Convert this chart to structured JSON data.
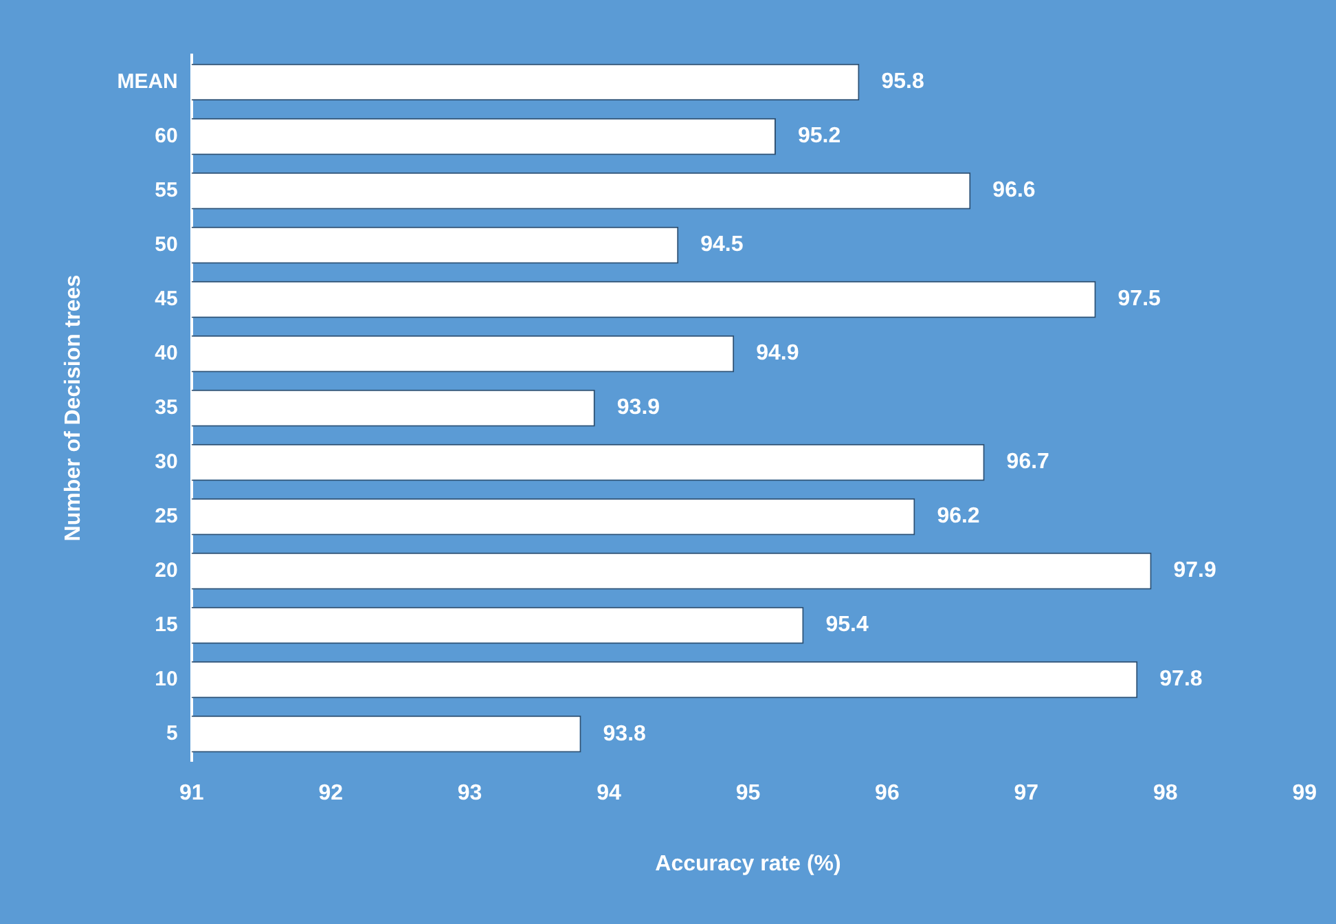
{
  "chart_data": {
    "type": "bar",
    "orientation": "horizontal",
    "xlabel": "Accuracy rate (%)",
    "ylabel": "Number of Decision trees",
    "categories": [
      "MEAN",
      "60",
      "55",
      "50",
      "45",
      "40",
      "35",
      "30",
      "25",
      "20",
      "15",
      "10",
      "5"
    ],
    "values": [
      95.8,
      95.2,
      96.6,
      94.5,
      97.5,
      94.9,
      93.9,
      96.7,
      96.2,
      97.9,
      95.4,
      97.8,
      93.8
    ],
    "color": "#ffffff",
    "xlim": [
      91,
      99
    ],
    "xticks": [
      91,
      92,
      93,
      94,
      95,
      96,
      97,
      98,
      99
    ],
    "grid": false,
    "legend": false,
    "data_labels": true
  }
}
